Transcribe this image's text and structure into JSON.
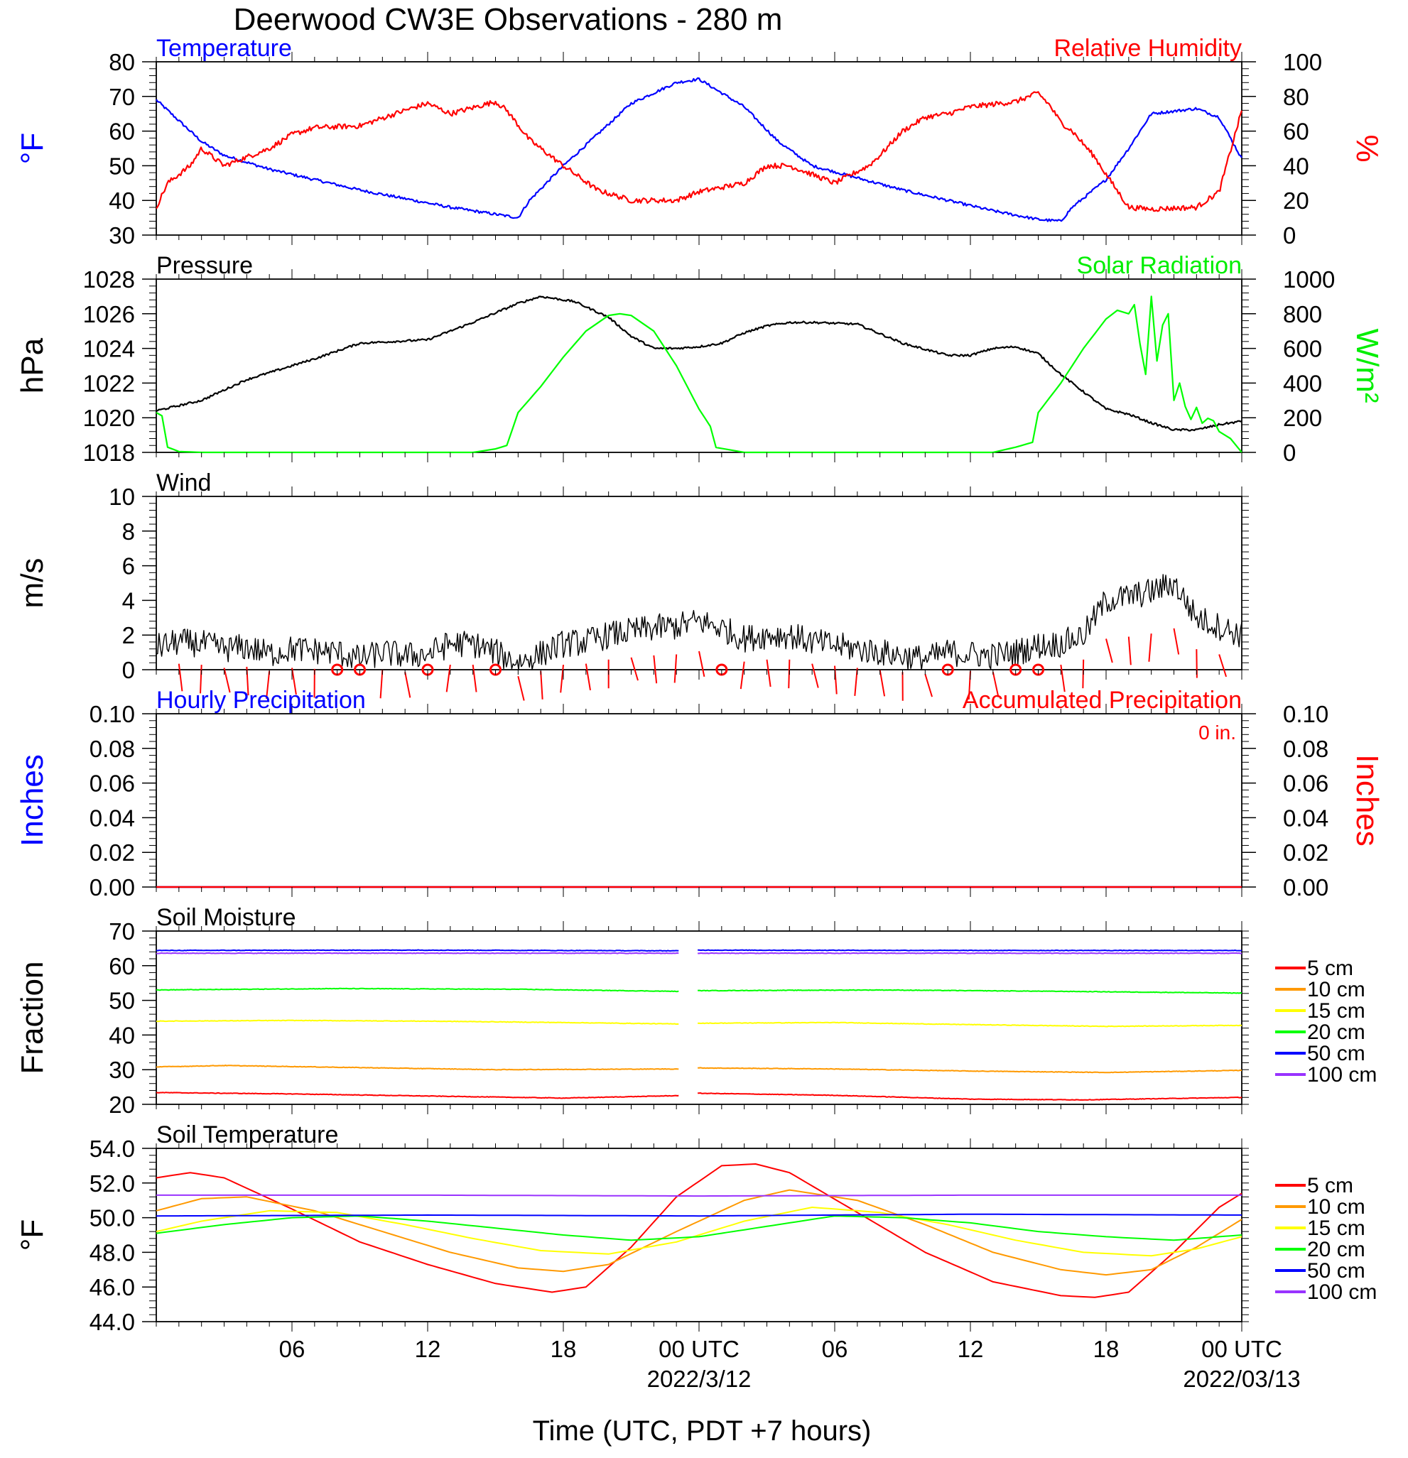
{
  "title": "Deerwood CW3E Observations - 280 m",
  "x_axis": {
    "title": "Time (UTC, PDT +7 hours)",
    "tick_labels": [
      "06",
      "12",
      "18",
      "00 UTC",
      "06",
      "12",
      "18",
      "00 UTC"
    ],
    "date_labels": [
      "2022/3/12",
      "2022/03/13"
    ]
  },
  "chart_data": [
    {
      "type": "line",
      "panel": "temperature_rh",
      "left_title": "Temperature",
      "right_title": "Relative Humidity",
      "left_ylabel": "°F",
      "right_ylabel": "%",
      "left_ylim": [
        30,
        80
      ],
      "right_ylim": [
        0,
        100
      ],
      "left_ticks": [
        "30",
        "40",
        "50",
        "60",
        "70",
        "80"
      ],
      "right_ticks": [
        "0",
        "20",
        "40",
        "60",
        "80",
        "100"
      ],
      "colors": {
        "temperature": "#0000ff",
        "humidity": "#ff0000"
      },
      "series": [
        {
          "name": "Temperature",
          "axis": "left",
          "x_hours": [
            0,
            1,
            2,
            3,
            5,
            7,
            9,
            11,
            13,
            15,
            16,
            16.5,
            18,
            19.5,
            21,
            23,
            24,
            26,
            27.5,
            29,
            31,
            33,
            35,
            37,
            39,
            40,
            40.5,
            42,
            43,
            44,
            46,
            47,
            48
          ],
          "values": [
            69,
            63,
            57,
            53,
            49,
            46,
            43,
            40.5,
            38,
            36,
            35,
            40,
            50,
            59,
            68,
            74,
            75,
            67,
            57,
            50,
            46.5,
            43,
            40,
            37,
            34.5,
            34,
            38,
            46,
            55,
            65,
            66.5,
            64,
            52
          ]
        },
        {
          "name": "Relative Humidity",
          "axis": "right",
          "x_hours": [
            0,
            0.5,
            1.5,
            2,
            3,
            5,
            6,
            7,
            9,
            11,
            12,
            13,
            15,
            15.5,
            16.5,
            18,
            19.5,
            21,
            23,
            24,
            26,
            27,
            28,
            30,
            31.5,
            32,
            33,
            34,
            35,
            36,
            38,
            39,
            39.5,
            40,
            40.5,
            41.5,
            42,
            43,
            44,
            46,
            47,
            48
          ],
          "values": [
            16,
            30,
            40,
            50,
            40,
            50,
            58,
            62,
            63,
            72,
            76,
            70,
            77,
            72,
            55,
            40,
            26,
            20,
            20,
            25,
            30,
            40,
            40,
            30,
            40,
            46,
            60,
            68,
            70,
            74,
            77,
            82,
            75,
            65,
            60,
            45,
            35,
            16,
            15,
            16,
            25,
            72
          ]
        }
      ]
    },
    {
      "type": "line",
      "panel": "pressure_solar",
      "left_title": "Pressure",
      "right_title": "Solar Radiation",
      "left_ylabel": "hPa",
      "right_ylabel": "W/m²",
      "left_ylim": [
        1018,
        1028
      ],
      "right_ylim": [
        0,
        1000
      ],
      "left_ticks": [
        "1018",
        "1020",
        "1022",
        "1024",
        "1026",
        "1028"
      ],
      "right_ticks": [
        "0",
        "200",
        "400",
        "600",
        "800",
        "1000"
      ],
      "colors": {
        "pressure": "#000000",
        "solar": "#00ff00"
      },
      "series": [
        {
          "name": "Pressure",
          "axis": "left",
          "x_hours": [
            0,
            2,
            4,
            5,
            7,
            9,
            12,
            14,
            16,
            17,
            18.5,
            20,
            21,
            22,
            23,
            24,
            25,
            26,
            27,
            28,
            29,
            31,
            33,
            35,
            36,
            37,
            38,
            39,
            40,
            41,
            42,
            43,
            44,
            45,
            46,
            47,
            48
          ],
          "values": [
            1020.4,
            1021.0,
            1022.2,
            1022.6,
            1023.4,
            1024.3,
            1024.5,
            1025.5,
            1026.6,
            1027.0,
            1026.7,
            1025.8,
            1024.7,
            1024.0,
            1024.0,
            1024.1,
            1024.3,
            1024.9,
            1025.3,
            1025.5,
            1025.5,
            1025.4,
            1024.3,
            1023.6,
            1023.6,
            1024.0,
            1024.1,
            1023.7,
            1022.5,
            1021.5,
            1020.5,
            1020.2,
            1019.7,
            1019.3,
            1019.3,
            1019.6,
            1019.8
          ]
        },
        {
          "name": "Solar Radiation",
          "axis": "right",
          "x_hours": [
            0,
            0.4,
            0.5,
            1,
            2,
            14,
            15,
            15.5,
            16,
            17,
            18,
            19,
            20,
            20.5,
            21,
            22,
            23,
            24,
            24.5,
            24.7,
            26,
            37,
            38,
            38.8,
            39,
            40,
            41,
            42,
            42.5,
            43,
            43.2,
            43.4,
            43.6,
            43.8,
            44,
            44.2,
            44.4,
            44.6,
            44.8,
            45,
            45.2,
            45.4,
            45.6,
            45.8,
            46,
            46.3,
            46.6,
            47,
            47.5,
            48
          ],
          "values": [
            230,
            200,
            30,
            5,
            0,
            0,
            20,
            40,
            230,
            380,
            550,
            700,
            790,
            800,
            790,
            700,
            500,
            250,
            150,
            30,
            0,
            0,
            30,
            60,
            230,
            400,
            600,
            770,
            820,
            800,
            970,
            500,
            750,
            350,
            900,
            380,
            970,
            500,
            900,
            300,
            450,
            250,
            280,
            160,
            260,
            150,
            220,
            120,
            80,
            0
          ]
        }
      ]
    },
    {
      "type": "line",
      "panel": "wind",
      "left_title": "Wind",
      "left_ylabel": "m/s",
      "left_ylim": [
        0,
        10
      ],
      "left_ticks": [
        "0",
        "2",
        "4",
        "6",
        "8",
        "10"
      ],
      "colors": {
        "wind": "#000000",
        "barbs": "#ff0000"
      },
      "series": [
        {
          "name": "Wind",
          "axis": "left",
          "x_hours": [
            0,
            1,
            2,
            3,
            4,
            5,
            6,
            7,
            8,
            9,
            10,
            11,
            12,
            13,
            14,
            15,
            16,
            17,
            18,
            19,
            20,
            21,
            22,
            23,
            24,
            25,
            26,
            27,
            28,
            29,
            30,
            31,
            32,
            33,
            34,
            35,
            36,
            37,
            38,
            39,
            40,
            41,
            42,
            43,
            44,
            45,
            46,
            47,
            48
          ],
          "values": [
            1.3,
            1.6,
            1.5,
            1.2,
            1.3,
            0.9,
            1.2,
            1.1,
            1.0,
            0.6,
            1.0,
            0.8,
            0.9,
            1.5,
            1.5,
            1.0,
            0.4,
            0.9,
            1.5,
            1.6,
            2.0,
            2.2,
            2.4,
            2.5,
            2.8,
            2.4,
            1.8,
            2.0,
            2.0,
            1.6,
            1.4,
            1.2,
            1.0,
            0.8,
            0.6,
            1.0,
            0.9,
            0.8,
            1.0,
            1.4,
            1.5,
            2.0,
            4.0,
            4.2,
            4.5,
            5.0,
            3.0,
            2.5,
            2.0
          ]
        }
      ],
      "calm_hours": [
        8,
        9,
        12,
        15,
        25,
        35,
        38,
        39
      ]
    },
    {
      "type": "line",
      "panel": "precipitation",
      "left_title": "Hourly Precipitation",
      "right_title": "Accumulated Precipitation",
      "annotation": "0 in.",
      "left_ylabel": "Inches",
      "right_ylabel": "Inches",
      "left_ylim": [
        0,
        0.1
      ],
      "right_ylim": [
        0,
        0.1
      ],
      "left_ticks": [
        "0.00",
        "0.02",
        "0.04",
        "0.06",
        "0.08",
        "0.10"
      ],
      "right_ticks": [
        "0.00",
        "0.02",
        "0.04",
        "0.06",
        "0.08",
        "0.10"
      ],
      "series": [
        {
          "name": "Hourly Precipitation",
          "axis": "left",
          "color": "#0000ff",
          "x_hours": [
            0,
            48
          ],
          "values": [
            0,
            0
          ]
        },
        {
          "name": "Accumulated Precipitation",
          "axis": "right",
          "color": "#ff0000",
          "x_hours": [
            0,
            48
          ],
          "values": [
            0,
            0
          ]
        }
      ]
    },
    {
      "type": "line",
      "panel": "soil_moisture",
      "left_title": "Soil Moisture",
      "left_ylabel": "Fraction",
      "left_ylim": [
        20,
        70
      ],
      "left_ticks": [
        "20",
        "30",
        "40",
        "50",
        "60",
        "70"
      ],
      "gap_hours": [
        23,
        24
      ],
      "series": [
        {
          "name": "5 cm",
          "color": "#ff0000",
          "x_hours": [
            0,
            6,
            12,
            18,
            23,
            24,
            30,
            36,
            41,
            48
          ],
          "values": [
            23.4,
            23.0,
            22.4,
            21.8,
            22.5,
            23.2,
            22.6,
            21.5,
            21.3,
            22.0
          ]
        },
        {
          "name": "10 cm",
          "color": "#ff9900",
          "x_hours": [
            0,
            3,
            9,
            15,
            23,
            24,
            30,
            36,
            42,
            48
          ],
          "values": [
            30.8,
            31.2,
            30.6,
            30.0,
            30.2,
            30.5,
            30.2,
            29.6,
            29.2,
            29.8
          ]
        },
        {
          "name": "15 cm",
          "color": "#ffff00",
          "x_hours": [
            0,
            6,
            12,
            18,
            23,
            24,
            30,
            36,
            42,
            48
          ],
          "values": [
            44.0,
            44.2,
            44.0,
            43.6,
            43.2,
            43.4,
            43.6,
            43.0,
            42.5,
            42.8
          ]
        },
        {
          "name": "20 cm",
          "color": "#00ff00",
          "x_hours": [
            0,
            8,
            16,
            23,
            24,
            32,
            40,
            48
          ],
          "values": [
            53.0,
            53.4,
            53.2,
            52.6,
            52.8,
            53.0,
            52.6,
            52.1
          ]
        },
        {
          "name": "50 cm",
          "color": "#0000ff",
          "x_hours": [
            0,
            12,
            23,
            24,
            36,
            48
          ],
          "values": [
            64.4,
            64.5,
            64.3,
            64.5,
            64.4,
            64.4
          ]
        },
        {
          "name": "100 cm",
          "color": "#9933ff",
          "x_hours": [
            0,
            12,
            23,
            24,
            36,
            48
          ],
          "values": [
            63.6,
            63.6,
            63.6,
            63.6,
            63.6,
            63.6
          ]
        }
      ],
      "legend": [
        "5 cm",
        "10 cm",
        "15 cm",
        "20 cm",
        "50 cm",
        "100 cm"
      ]
    },
    {
      "type": "line",
      "panel": "soil_temperature",
      "left_title": "Soil Temperature",
      "left_ylabel": "°F",
      "left_ylim": [
        44,
        54
      ],
      "left_ticks": [
        "44.0",
        "46.0",
        "48.0",
        "50.0",
        "52.0",
        "54.0"
      ],
      "series": [
        {
          "name": "5 cm",
          "color": "#ff0000",
          "x_hours": [
            0,
            1.5,
            3,
            6,
            9,
            12,
            15,
            17.5,
            19,
            21,
            23,
            25,
            26.5,
            28,
            31,
            34,
            37,
            40,
            41.5,
            43,
            45,
            47,
            48
          ],
          "values": [
            52.3,
            52.6,
            52.3,
            50.5,
            48.6,
            47.3,
            46.2,
            45.7,
            46.0,
            48.3,
            51.2,
            53.0,
            53.1,
            52.6,
            50.3,
            48.0,
            46.3,
            45.5,
            45.4,
            45.7,
            48.0,
            50.6,
            51.4
          ]
        },
        {
          "name": "10 cm",
          "color": "#ff9900",
          "x_hours": [
            0,
            2,
            4,
            7,
            10,
            13,
            16,
            18,
            20,
            23,
            26,
            28,
            31,
            34,
            37,
            40,
            42,
            44,
            46,
            48
          ],
          "values": [
            50.4,
            51.1,
            51.2,
            50.4,
            49.2,
            48.0,
            47.1,
            46.9,
            47.3,
            49.2,
            51.0,
            51.6,
            51.0,
            49.6,
            48.0,
            47.0,
            46.7,
            47.0,
            48.3,
            49.9
          ]
        },
        {
          "name": "15 cm",
          "color": "#ffff00",
          "x_hours": [
            0,
            2,
            5,
            8,
            11,
            14,
            17,
            20,
            23,
            26,
            29,
            32,
            35,
            38,
            41,
            44,
            46,
            48
          ],
          "values": [
            49.2,
            49.8,
            50.4,
            50.3,
            49.6,
            48.8,
            48.1,
            47.9,
            48.6,
            49.8,
            50.6,
            50.3,
            49.6,
            48.7,
            48.0,
            47.8,
            48.2,
            48.9
          ]
        },
        {
          "name": "20 cm",
          "color": "#00ff00",
          "x_hours": [
            0,
            3,
            6,
            9,
            12,
            15,
            18,
            21,
            24,
            27,
            30,
            33,
            36,
            39,
            42,
            45,
            48
          ],
          "values": [
            49.1,
            49.6,
            50.0,
            50.1,
            49.8,
            49.4,
            49.0,
            48.7,
            48.9,
            49.5,
            50.1,
            50.0,
            49.7,
            49.2,
            48.9,
            48.7,
            49.0
          ]
        },
        {
          "name": "50 cm",
          "color": "#0000ff",
          "x_hours": [
            0,
            12,
            24,
            36,
            48
          ],
          "values": [
            50.1,
            50.15,
            50.1,
            50.2,
            50.15
          ]
        },
        {
          "name": "100 cm",
          "color": "#9933ff",
          "x_hours": [
            0,
            12,
            24,
            36,
            48
          ],
          "values": [
            51.3,
            51.3,
            51.25,
            51.3,
            51.3
          ]
        }
      ],
      "legend": [
        "5 cm",
        "10 cm",
        "15 cm",
        "20 cm",
        "50 cm",
        "100 cm"
      ]
    }
  ]
}
